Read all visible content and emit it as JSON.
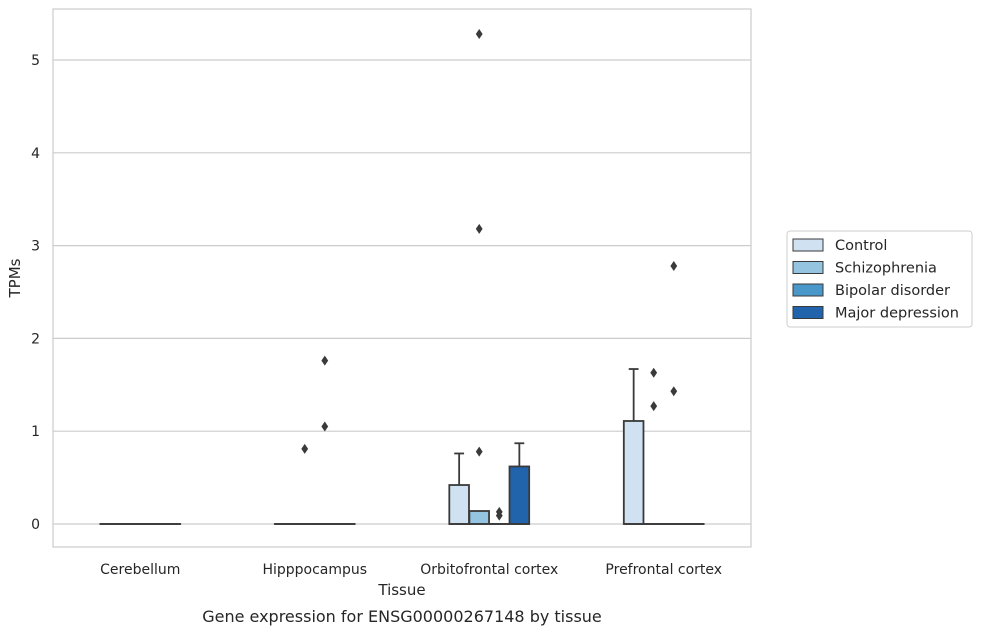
{
  "chart_data": {
    "type": "boxplot",
    "caption": "Gene expression for ENSG00000267148 by tissue",
    "xlabel": "Tissue",
    "ylabel": "TPMs",
    "ylim": [
      -0.25,
      5.55
    ],
    "yticks": [
      0,
      1,
      2,
      3,
      4,
      5
    ],
    "grid": "horizontal",
    "legend_position": "right",
    "categories": [
      "Cerebellum",
      "Hipppocampus",
      "Orbitofrontal cortex",
      "Prefrontal cortex"
    ],
    "series": [
      {
        "name": "Control",
        "color": "#d0e1f2",
        "boxes": [
          {
            "q1": 0,
            "median": 0,
            "q3": 0,
            "whisker_low": 0,
            "whisker_high": 0,
            "outliers": []
          },
          {
            "q1": 0,
            "median": 0,
            "q3": 0,
            "whisker_low": 0,
            "whisker_high": 0,
            "outliers": []
          },
          {
            "q1": 0,
            "median": 0,
            "q3": 0.42,
            "whisker_low": 0,
            "whisker_high": 0.76,
            "outliers": []
          },
          {
            "q1": 0,
            "median": 0,
            "q3": 1.11,
            "whisker_low": 0,
            "whisker_high": 1.67,
            "outliers": []
          }
        ]
      },
      {
        "name": "Schizophrenia",
        "color": "#94c4df",
        "boxes": [
          {
            "q1": 0,
            "median": 0,
            "q3": 0,
            "whisker_low": 0,
            "whisker_high": 0,
            "outliers": []
          },
          {
            "q1": 0,
            "median": 0,
            "q3": 0,
            "whisker_low": 0,
            "whisker_high": 0,
            "outliers": [
              0.81
            ]
          },
          {
            "q1": 0,
            "median": 0,
            "q3": 0.14,
            "whisker_low": 0,
            "whisker_high": 0.14,
            "outliers": [
              0.78,
              5.28,
              3.18
            ]
          },
          {
            "q1": 0,
            "median": 0,
            "q3": 0,
            "whisker_low": 0,
            "whisker_high": 0,
            "outliers": [
              1.63,
              1.27
            ]
          }
        ]
      },
      {
        "name": "Bipolar disorder",
        "color": "#4a98c9",
        "boxes": [
          {
            "q1": 0,
            "median": 0,
            "q3": 0,
            "whisker_low": 0,
            "whisker_high": 0,
            "outliers": []
          },
          {
            "q1": 0,
            "median": 0,
            "q3": 0,
            "whisker_low": 0,
            "whisker_high": 0,
            "outliers": [
              1.76,
              1.05
            ]
          },
          {
            "q1": 0,
            "median": 0,
            "q3": 0,
            "whisker_low": 0,
            "whisker_high": 0,
            "outliers": [
              0.13,
              0.09
            ]
          },
          {
            "q1": 0,
            "median": 0,
            "q3": 0,
            "whisker_low": 0,
            "whisker_high": 0,
            "outliers": [
              2.78,
              1.43
            ]
          }
        ]
      },
      {
        "name": "Major depression",
        "color": "#2164ab",
        "boxes": [
          {
            "q1": 0,
            "median": 0,
            "q3": 0,
            "whisker_low": 0,
            "whisker_high": 0,
            "outliers": []
          },
          {
            "q1": 0,
            "median": 0,
            "q3": 0,
            "whisker_low": 0,
            "whisker_high": 0,
            "outliers": []
          },
          {
            "q1": 0,
            "median": 0,
            "q3": 0.62,
            "whisker_low": 0,
            "whisker_high": 0.87,
            "outliers": []
          },
          {
            "q1": 0,
            "median": 0,
            "q3": 0,
            "whisker_low": 0,
            "whisker_high": 0,
            "outliers": []
          }
        ]
      }
    ]
  }
}
